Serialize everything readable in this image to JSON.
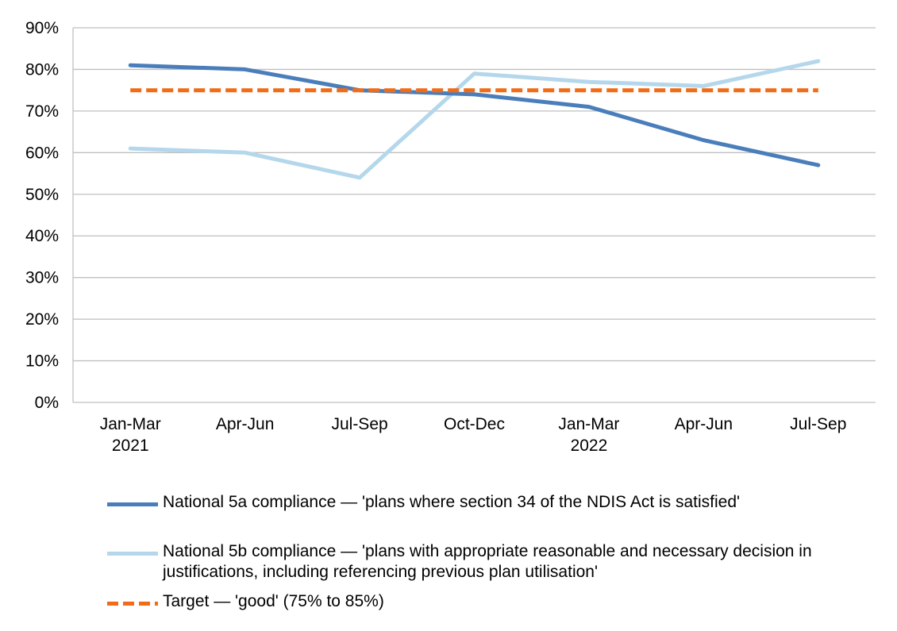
{
  "chart_data": {
    "type": "line",
    "categories": [
      [
        "Jan-Mar",
        "2021"
      ],
      [
        "Apr-Jun"
      ],
      [
        "Jul-Sep"
      ],
      [
        "Oct-Dec"
      ],
      [
        "Jan-Mar",
        "2022"
      ],
      [
        "Apr-Jun"
      ],
      [
        "Jul-Sep"
      ]
    ],
    "ylim": [
      0,
      90
    ],
    "yticks": [
      "0%",
      "10%",
      "20%",
      "30%",
      "40%",
      "50%",
      "60%",
      "70%",
      "80%",
      "90%"
    ],
    "grid": true,
    "legend_position": "bottom",
    "series": [
      {
        "name": "National 5a compliance — 'plans where section 34 of the NDIS Act is satisfied'",
        "values": [
          81,
          80,
          75,
          74,
          71,
          63,
          57
        ],
        "color": "#4a7ebb",
        "style": "solid"
      },
      {
        "name": "National 5b compliance — 'plans with appropriate reasonable and necessary decision in justifications, including referencing previous plan utilisation'",
        "values": [
          61,
          60,
          54,
          79,
          77,
          76,
          82
        ],
        "color": "#b4d7ec",
        "style": "solid"
      },
      {
        "name": "Target — 'good' (75% to 85%)",
        "values": [
          75,
          75,
          75,
          75,
          75,
          75,
          75
        ],
        "color": "#f26b17",
        "style": "dashed"
      }
    ]
  }
}
